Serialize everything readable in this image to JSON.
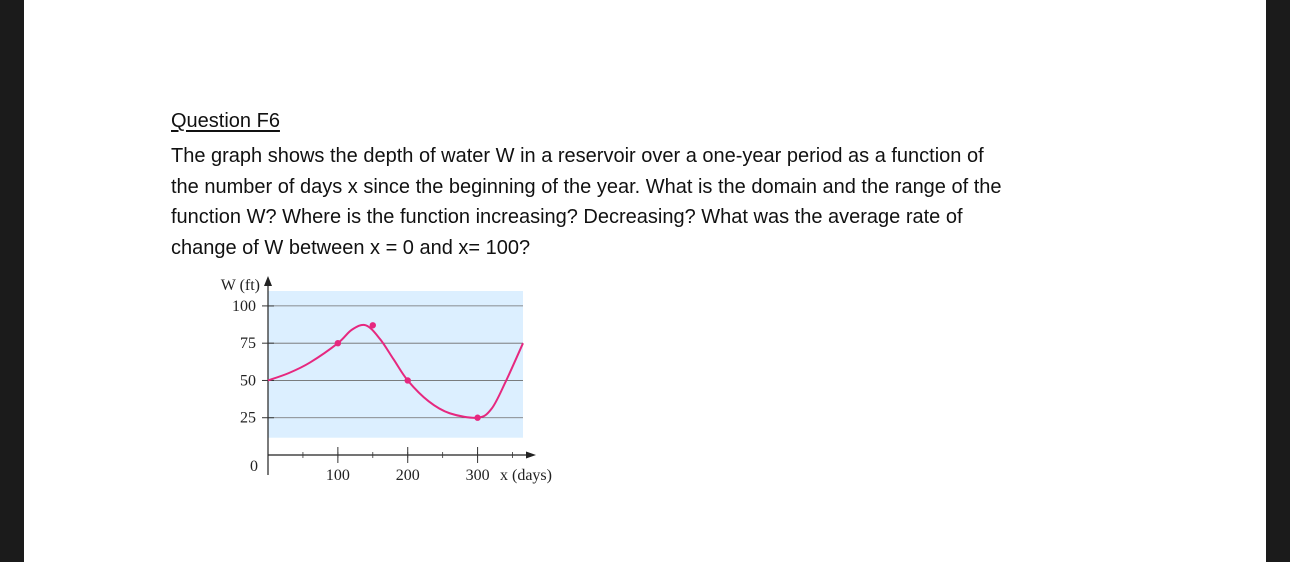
{
  "question": {
    "title": "Question F6",
    "lines": [
      "The graph shows the depth of water W  in a reservoir over a one-year period as a function of",
      "the number of days x since the beginning of the year. What is the domain and the range of the",
      "function W? Where is the function increasing? Decreasing? What was the average rate of",
      "change of  W  between x = 0 and x= 100?"
    ]
  },
  "colors": {
    "page": "#ffffff",
    "plot_background": "#dcefff",
    "curve": "#e6287f",
    "gridline": "#6b6b6b"
  },
  "chart_data": {
    "type": "line",
    "xlabel": "x (days)",
    "ylabel": "W (ft)",
    "xlim": [
      0,
      365
    ],
    "ylim": [
      0,
      110
    ],
    "x_ticks": [
      100,
      200,
      300
    ],
    "y_ticks": [
      25,
      50,
      75,
      100
    ],
    "origin_label": "0",
    "grid": true,
    "series": [
      {
        "x": [
          0,
          30,
          60,
          100,
          120,
          140,
          160,
          180,
          200,
          230,
          260,
          300,
          320,
          340,
          365
        ],
        "values": [
          50,
          55,
          62,
          75,
          84,
          87,
          78,
          64,
          50,
          36,
          28,
          25,
          31,
          49,
          75
        ]
      }
    ],
    "marked_points": [
      {
        "x": 100,
        "y": 75
      },
      {
        "x": 150,
        "y": 87
      },
      {
        "x": 200,
        "y": 50
      },
      {
        "x": 300,
        "y": 25
      }
    ]
  }
}
